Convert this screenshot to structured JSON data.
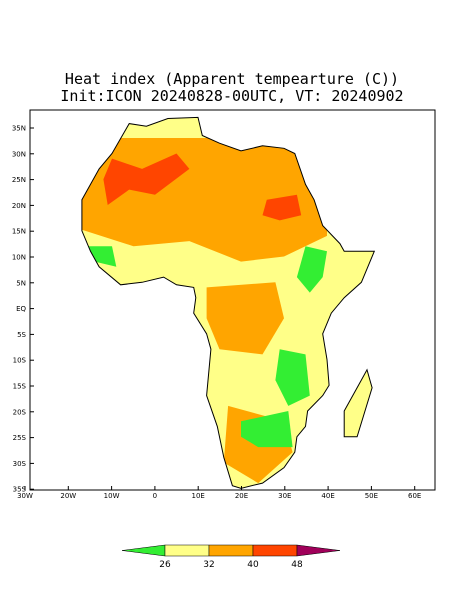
{
  "header": {
    "title": "Heat index (Apparent tempearture (C))",
    "subtitle": "Init:ICON 20240828-00UTC, VT: 20240902"
  },
  "map": {
    "lat_labels": [
      "35N",
      "30N",
      "25N",
      "20N",
      "15N",
      "10N",
      "5N",
      "EQ",
      "5S",
      "10S",
      "15S",
      "20S",
      "25S",
      "30S",
      "35S"
    ],
    "lon_labels": [
      "30W",
      "20W",
      "10W",
      "0",
      "10E",
      "20E",
      "30E",
      "40E",
      "50E",
      "60E"
    ]
  },
  "colorbar": {
    "labels": [
      "26",
      "32",
      "40",
      "48"
    ],
    "colors": [
      "#33ee33",
      "#ffff88",
      "#ffa500",
      "#ff4500",
      "#a0005a"
    ]
  }
}
